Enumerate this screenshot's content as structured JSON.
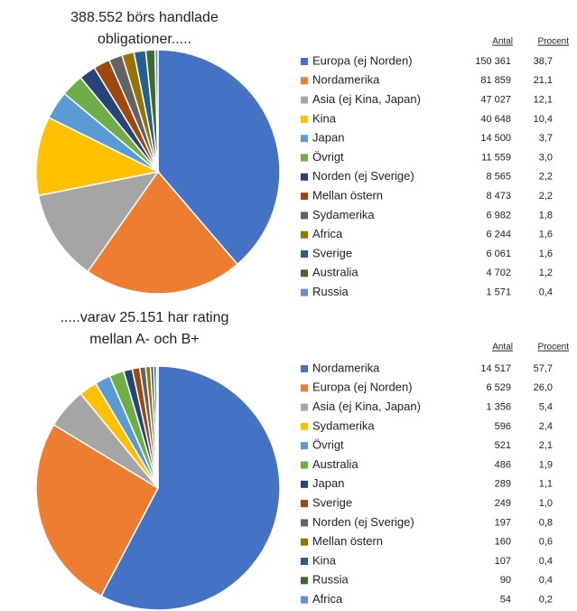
{
  "chart_data": [
    {
      "type": "pie",
      "title": [
        "388.552 börs handlade",
        "obligationer....."
      ],
      "column_headers": [
        "Antal",
        "Procent"
      ],
      "categories": [
        "Europa (ej Norden)",
        "Nordamerika",
        "Asia (ej Kina, Japan)",
        "Kina",
        "Japan",
        "Övrigt",
        "Norden (ej Sverige)",
        "Mellan östern",
        "Sydamerika",
        "Africa",
        "Sverige",
        "Australia",
        "Russia"
      ],
      "values": [
        150361,
        81859,
        47027,
        40648,
        14500,
        11559,
        8565,
        8473,
        6982,
        6244,
        6061,
        4702,
        1571
      ],
      "value_labels": [
        "150 361",
        "81 859",
        "47 027",
        "40 648",
        "14 500",
        "11 559",
        "8 565",
        "8 473",
        "6 982",
        "6 244",
        "6 061",
        "4 702",
        "1 571"
      ],
      "percentages": [
        38.7,
        21.1,
        12.1,
        10.4,
        3.7,
        3.0,
        2.2,
        2.2,
        1.8,
        1.6,
        1.6,
        1.2,
        0.4
      ],
      "percentage_labels": [
        "38,7",
        "21,1",
        "12,1",
        "10,4",
        "3,7",
        "3,0",
        "2,2",
        "2,2",
        "1,8",
        "1,6",
        "1,6",
        "1,2",
        "0,4"
      ],
      "colors": [
        "#4472c4",
        "#ed7d31",
        "#a5a5a5",
        "#ffc000",
        "#5b9bd5",
        "#70ad47",
        "#264478",
        "#9e480e",
        "#636363",
        "#997300",
        "#255e91",
        "#43682b",
        "#698ed0"
      ]
    },
    {
      "type": "pie",
      "title": [
        ".....varav 25.151 har rating",
        "mellan A- och B+"
      ],
      "column_headers": [
        "Antal",
        "Procent"
      ],
      "categories": [
        "Nordamerika",
        "Europa (ej Norden)",
        "Asia (ej Kina, Japan)",
        "Sydamerika",
        "Övrigt",
        "Australia",
        "Japan",
        "Sverige",
        "Norden (ej Sverige)",
        "Mellan östern",
        "Kina",
        "Russia",
        "Africa"
      ],
      "values": [
        14517,
        6529,
        1356,
        596,
        521,
        486,
        289,
        249,
        197,
        160,
        107,
        90,
        54
      ],
      "value_labels": [
        "14 517",
        "6 529",
        "1 356",
        "596",
        "521",
        "486",
        "289",
        "249",
        "197",
        "160",
        "107",
        "90",
        "54"
      ],
      "percentages": [
        57.7,
        26.0,
        5.4,
        2.4,
        2.1,
        1.9,
        1.1,
        1.0,
        0.8,
        0.6,
        0.4,
        0.4,
        0.2
      ],
      "percentage_labels": [
        "57,7",
        "26,0",
        "5,4",
        "2,4",
        "2,1",
        "1,9",
        "1,1",
        "1,0",
        "0,8",
        "0,6",
        "0,4",
        "0,4",
        "0,2"
      ],
      "colors": [
        "#4472c4",
        "#ed7d31",
        "#a5a5a5",
        "#ffc000",
        "#5b9bd5",
        "#70ad47",
        "#264478",
        "#9e480e",
        "#636363",
        "#997300",
        "#255e91",
        "#43682b",
        "#698ed0"
      ]
    }
  ]
}
